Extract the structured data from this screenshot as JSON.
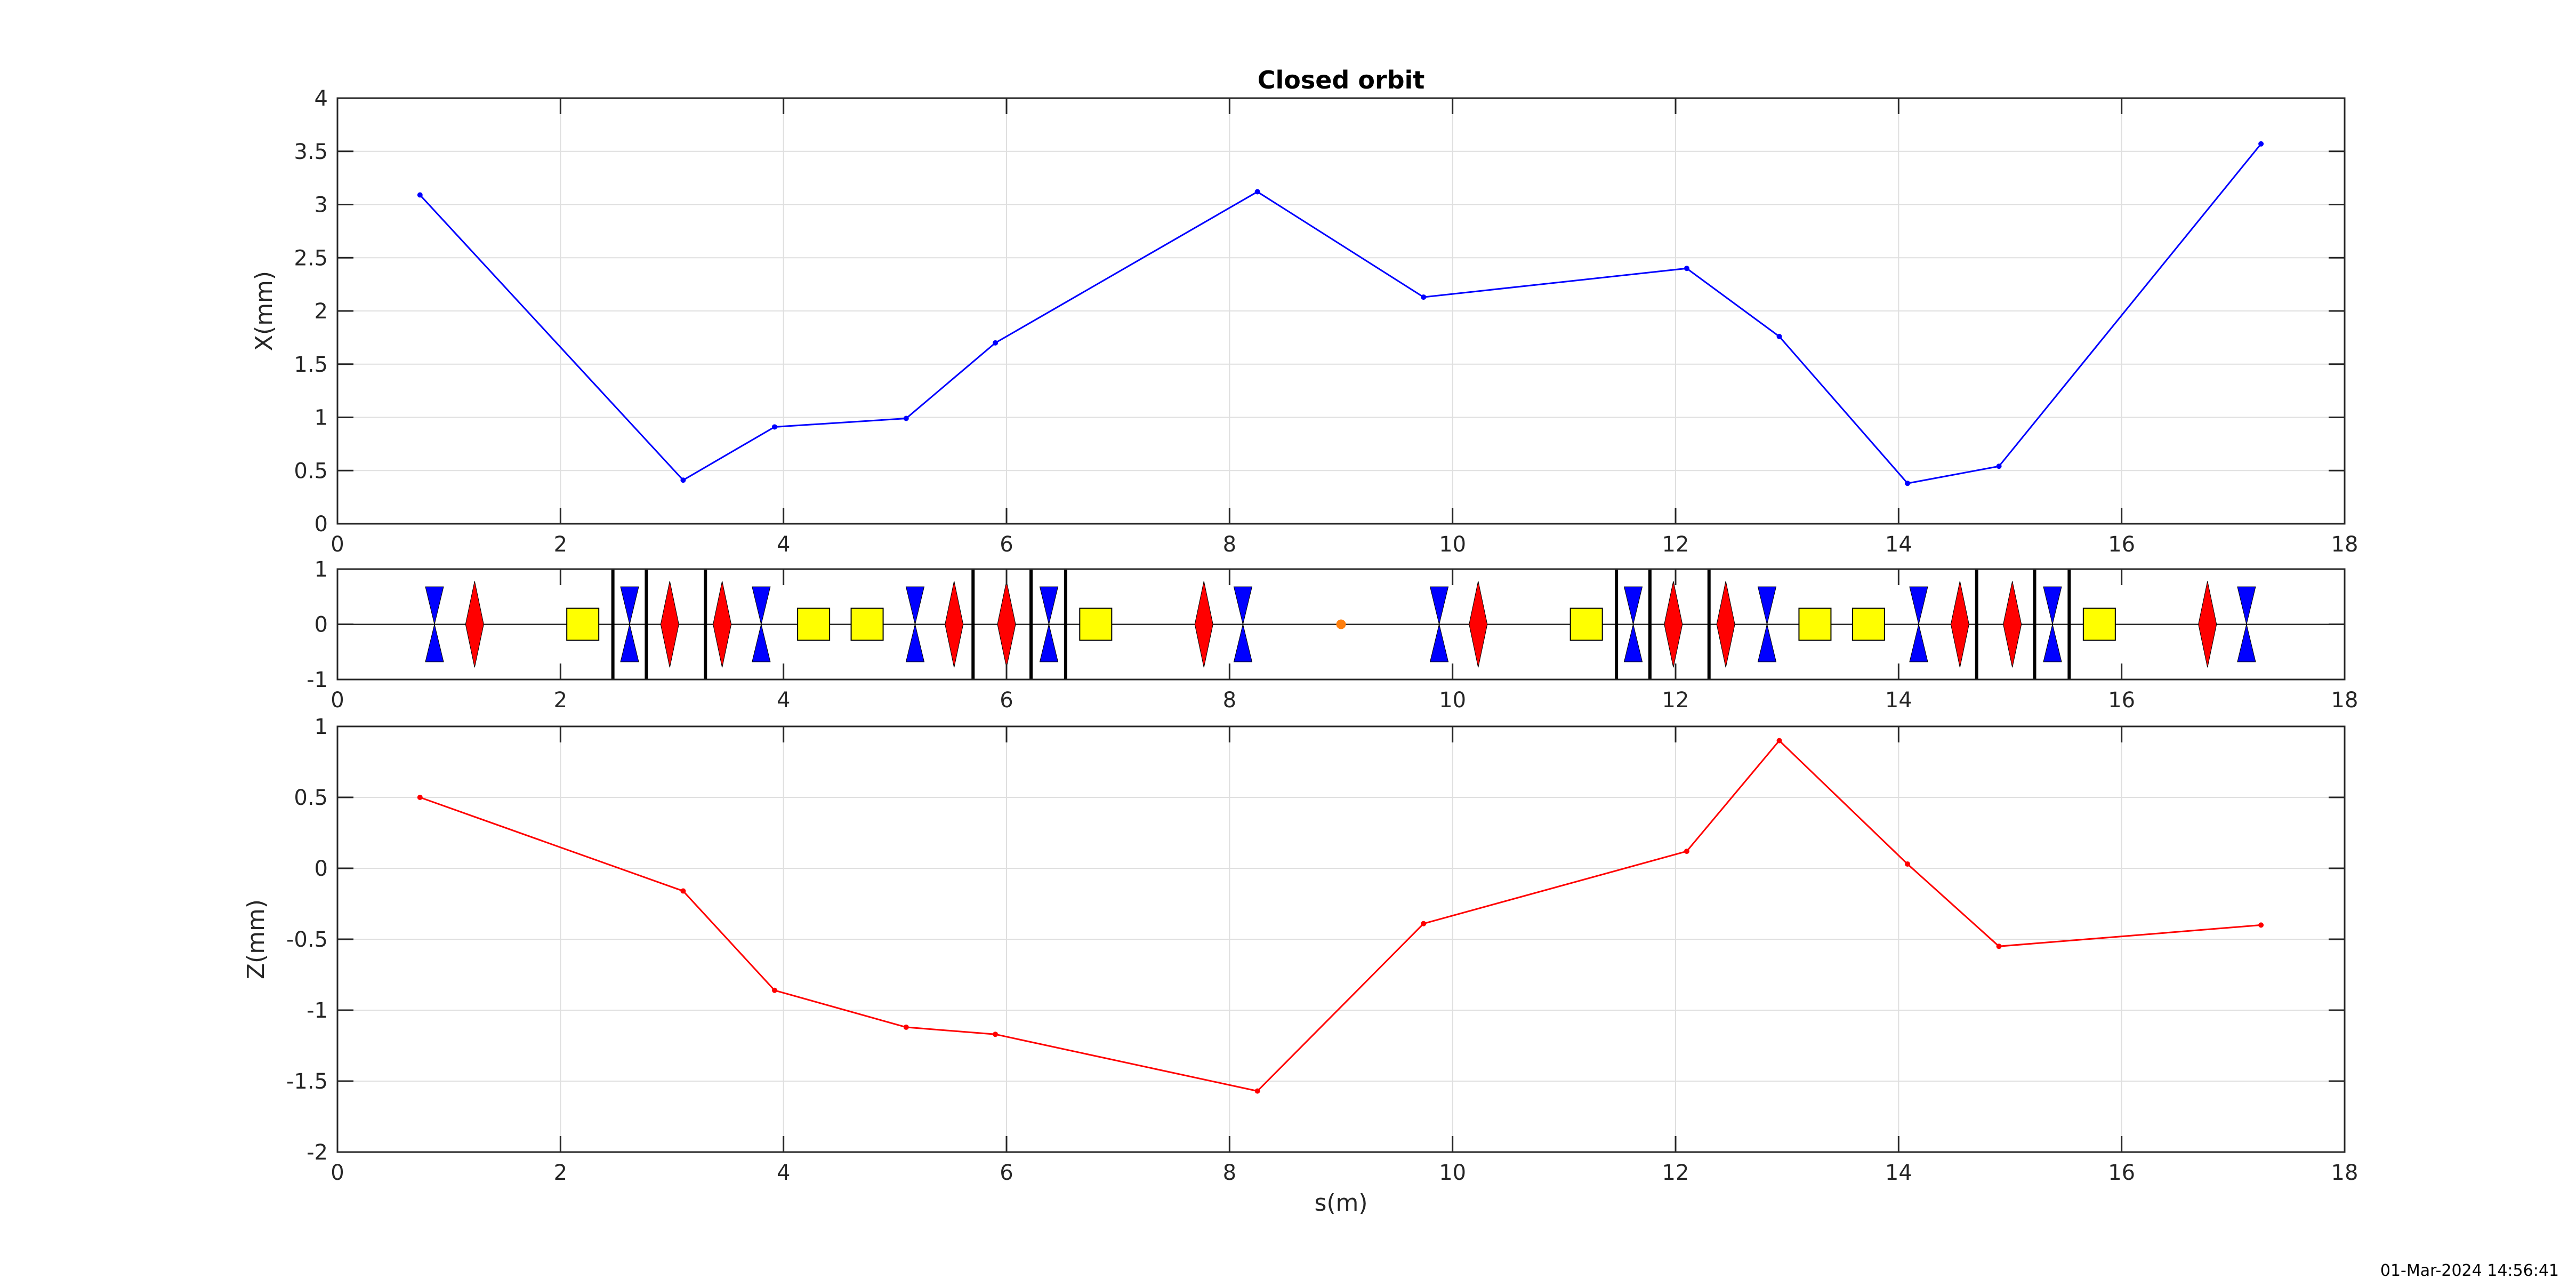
{
  "timestamp": "01-Mar-2024 14:56:41",
  "chart_data": [
    {
      "id": "x_orbit",
      "type": "line",
      "title": "Closed orbit",
      "xlabel": "",
      "ylabel": "X(mm)",
      "xlim": [
        0,
        18
      ],
      "ylim": [
        0,
        4
      ],
      "xticks": [
        0,
        2,
        4,
        6,
        8,
        10,
        12,
        14,
        16,
        18
      ],
      "yticks": [
        0,
        0.5,
        1,
        1.5,
        2,
        2.5,
        3,
        3.5,
        4
      ],
      "grid": true,
      "color": "#0000ff",
      "x": [
        0.74,
        3.1,
        3.92,
        5.1,
        5.9,
        8.25,
        9.74,
        12.1,
        12.93,
        14.08,
        14.9,
        17.25
      ],
      "y": [
        3.09,
        0.41,
        0.91,
        0.99,
        1.7,
        3.12,
        2.13,
        2.4,
        1.76,
        0.38,
        0.54,
        3.57
      ]
    },
    {
      "id": "lattice",
      "type": "lattice",
      "xlim": [
        0,
        18
      ],
      "ylim": [
        -1,
        1
      ],
      "xticks": [
        0,
        2,
        4,
        6,
        8,
        10,
        12,
        14,
        16,
        18
      ],
      "yticks": [
        -1,
        0,
        1
      ],
      "colors": {
        "focusing": "#ff0000",
        "defocusing": "#0000ff",
        "sextupole": "#ffff00",
        "marker": "#ff7f0e"
      },
      "defocusing_quads": [
        0.87,
        2.62,
        3.8,
        5.18,
        6.38,
        8.12,
        9.88,
        11.62,
        12.82,
        14.18,
        15.38,
        17.12
      ],
      "focusing_quads": [
        1.23,
        2.98,
        3.45,
        5.53,
        6.0,
        7.77,
        10.23,
        11.98,
        12.45,
        14.55,
        15.02,
        16.77
      ],
      "sextupoles": [
        2.2,
        4.27,
        4.75,
        6.8,
        11.2,
        13.25,
        13.73,
        15.8
      ],
      "bpms": [
        2.47,
        2.77,
        3.3,
        5.7,
        6.22,
        6.53,
        11.47,
        11.77,
        12.3,
        14.7,
        15.22,
        15.53
      ],
      "marker": [
        9.0
      ]
    },
    {
      "id": "z_orbit",
      "type": "line",
      "xlabel": "s(m)",
      "ylabel": "Z(mm)",
      "xlim": [
        0,
        18
      ],
      "ylim": [
        -2,
        1
      ],
      "xticks": [
        0,
        2,
        4,
        6,
        8,
        10,
        12,
        14,
        16,
        18
      ],
      "yticks": [
        -2,
        -1.5,
        -1,
        -0.5,
        0,
        0.5,
        1
      ],
      "grid": true,
      "color": "#ff0000",
      "x": [
        0.74,
        3.1,
        3.92,
        5.1,
        5.9,
        8.25,
        9.74,
        12.1,
        12.93,
        14.08,
        14.9,
        17.25
      ],
      "y": [
        0.5,
        -0.16,
        -0.86,
        -1.12,
        -1.17,
        -1.57,
        -0.39,
        0.12,
        0.9,
        0.03,
        -0.55,
        -0.4
      ]
    }
  ]
}
